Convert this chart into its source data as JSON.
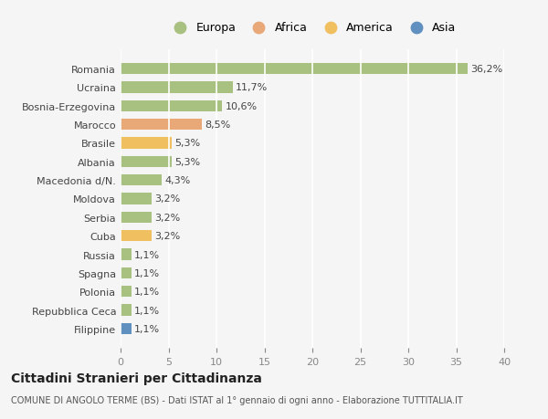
{
  "countries": [
    "Filippine",
    "Repubblica Ceca",
    "Polonia",
    "Spagna",
    "Russia",
    "Cuba",
    "Serbia",
    "Moldova",
    "Macedonia d/N.",
    "Albania",
    "Brasile",
    "Marocco",
    "Bosnia-Erzegovina",
    "Ucraina",
    "Romania"
  ],
  "values": [
    1.1,
    1.1,
    1.1,
    1.1,
    1.1,
    3.2,
    3.2,
    3.2,
    4.3,
    5.3,
    5.3,
    8.5,
    10.6,
    11.7,
    36.2
  ],
  "labels": [
    "1,1%",
    "1,1%",
    "1,1%",
    "1,1%",
    "1,1%",
    "3,2%",
    "3,2%",
    "3,2%",
    "4,3%",
    "5,3%",
    "5,3%",
    "8,5%",
    "10,6%",
    "11,7%",
    "36,2%"
  ],
  "continents": [
    "Asia",
    "Europa",
    "Europa",
    "Europa",
    "Europa",
    "America",
    "Europa",
    "Europa",
    "Europa",
    "Europa",
    "America",
    "Africa",
    "Europa",
    "Europa",
    "Europa"
  ],
  "colors": {
    "Europa": "#a8c080",
    "Africa": "#e8a878",
    "America": "#f0c060",
    "Asia": "#6090c0"
  },
  "legend_order": [
    "Europa",
    "Africa",
    "America",
    "Asia"
  ],
  "xlim": [
    0,
    40
  ],
  "xticks": [
    0,
    5,
    10,
    15,
    20,
    25,
    30,
    35,
    40
  ],
  "title": "Cittadini Stranieri per Cittadinanza",
  "subtitle": "COMUNE DI ANGOLO TERME (BS) - Dati ISTAT al 1° gennaio di ogni anno - Elaborazione TUTTITALIA.IT",
  "bg_color": "#f5f5f5",
  "grid_color": "#ffffff",
  "bar_height": 0.6
}
